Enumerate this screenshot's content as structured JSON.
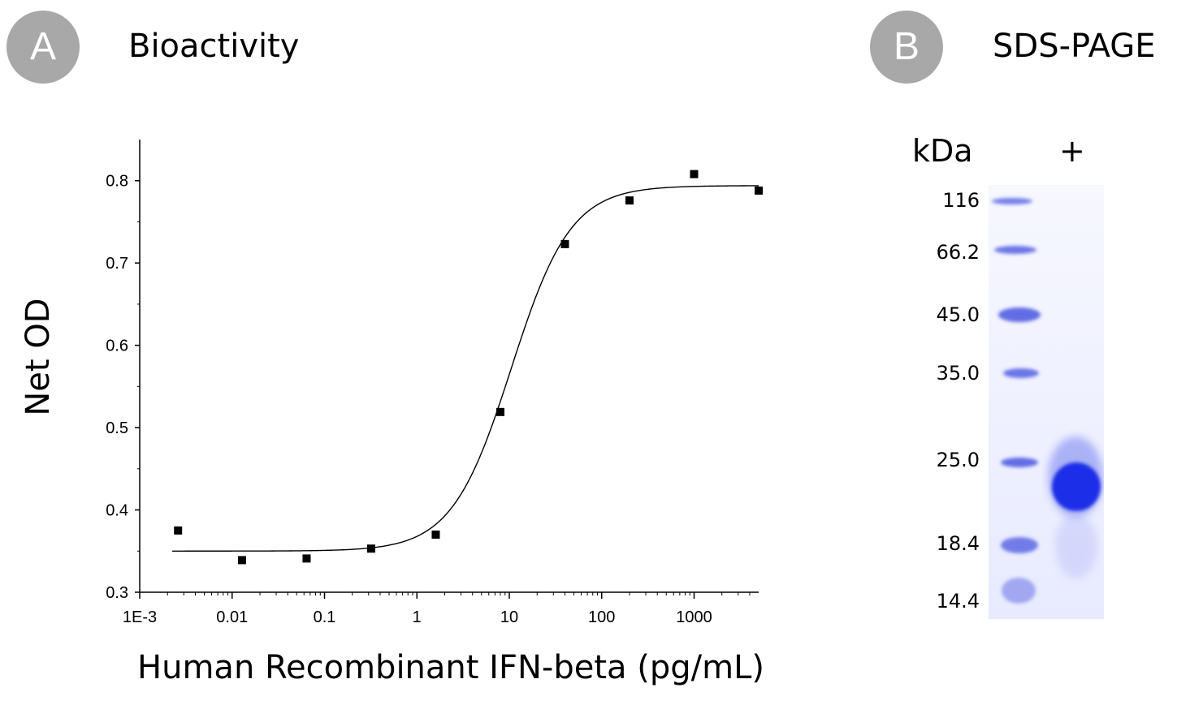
{
  "panels": {
    "a": {
      "letter": "A",
      "title": "Bioactivity"
    },
    "b": {
      "letter": "B",
      "title": "SDS-PAGE"
    }
  },
  "chart_data": {
    "type": "scatter",
    "xscale": "log",
    "xlabel": "Human Recombinant IFN-beta (pg/mL)",
    "ylabel": "Net OD",
    "xlim": [
      0.001,
      5000
    ],
    "ylim": [
      0.3,
      0.85
    ],
    "xticks": [
      {
        "value": 0.001,
        "label": "1E-3"
      },
      {
        "value": 0.01,
        "label": "0.01"
      },
      {
        "value": 0.1,
        "label": "0.1"
      },
      {
        "value": 1,
        "label": "1"
      },
      {
        "value": 10,
        "label": "10"
      },
      {
        "value": 100,
        "label": "100"
      },
      {
        "value": 1000,
        "label": "1000"
      }
    ],
    "yticks": [
      {
        "value": 0.3,
        "label": "0.3"
      },
      {
        "value": 0.4,
        "label": "0.4"
      },
      {
        "value": 0.5,
        "label": "0.5"
      },
      {
        "value": 0.6,
        "label": "0.6"
      },
      {
        "value": 0.7,
        "label": "0.7"
      },
      {
        "value": 0.8,
        "label": "0.8"
      }
    ],
    "points": [
      {
        "x": 0.0026,
        "y": 0.375
      },
      {
        "x": 0.0128,
        "y": 0.339
      },
      {
        "x": 0.064,
        "y": 0.341
      },
      {
        "x": 0.32,
        "y": 0.353
      },
      {
        "x": 1.6,
        "y": 0.37
      },
      {
        "x": 8,
        "y": 0.519
      },
      {
        "x": 40,
        "y": 0.723
      },
      {
        "x": 200,
        "y": 0.776
      },
      {
        "x": 1000,
        "y": 0.808
      },
      {
        "x": 5000,
        "y": 0.788
      }
    ],
    "fit": {
      "bottom": 0.35,
      "top": 0.794,
      "ec50": 10.5,
      "hill": 1.35
    }
  },
  "gel": {
    "unit": "kDa",
    "lane_label": "+",
    "markers": [
      "116",
      "66.2",
      "45.0",
      "35.0",
      "25.0",
      "18.4",
      "14.4"
    ],
    "band_color": "#1f2fe8"
  }
}
